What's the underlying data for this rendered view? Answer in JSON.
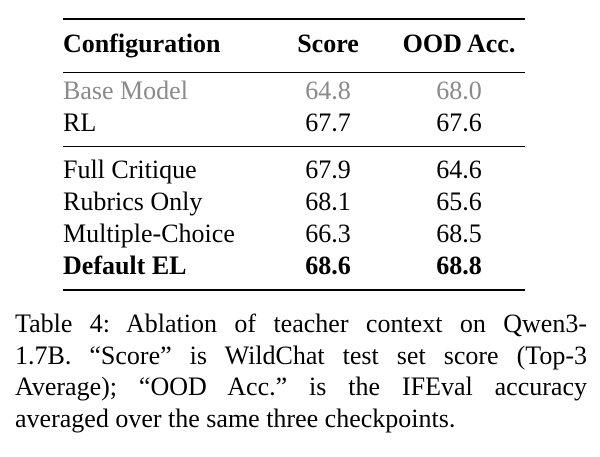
{
  "table": {
    "headers": [
      "Configuration",
      "Score",
      "OOD Acc."
    ],
    "groups": [
      {
        "rows": [
          {
            "config": "Base Model",
            "score": "64.8",
            "ood": "68.0",
            "style": "muted"
          },
          {
            "config": "RL",
            "score": "67.7",
            "ood": "67.6",
            "style": "normal"
          }
        ]
      },
      {
        "rows": [
          {
            "config": "Full Critique",
            "score": "67.9",
            "ood": "64.6",
            "style": "normal"
          },
          {
            "config": "Rubrics Only",
            "score": "68.1",
            "ood": "65.6",
            "style": "normal"
          },
          {
            "config": "Multiple-Choice",
            "score": "66.3",
            "ood": "68.5",
            "style": "normal"
          },
          {
            "config": "Default EL",
            "score": "68.6",
            "ood": "68.8",
            "style": "bold"
          }
        ]
      }
    ]
  },
  "caption": {
    "lines": [
      "Table 4: Ablation of teacher context on Qwen3-",
      "1.7B. “Score” is WildChat test set score (Top-3",
      "Average); “OOD Acc.”  is the IFEval accuracy",
      "averaged over the same three checkpoints."
    ]
  }
}
